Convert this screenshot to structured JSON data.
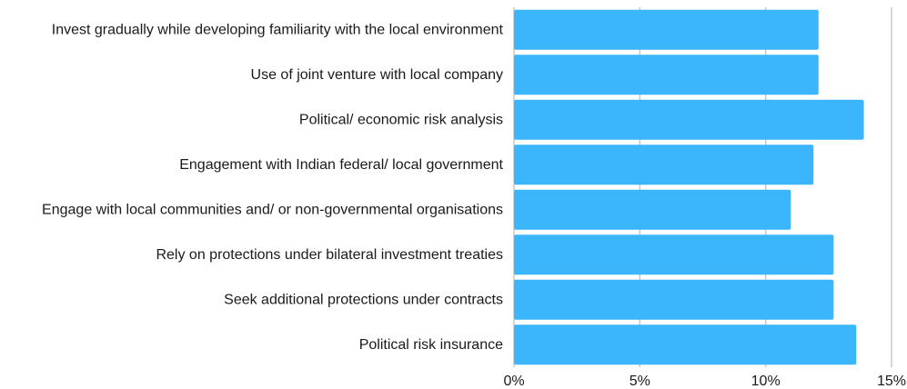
{
  "chart_data": {
    "type": "bar",
    "orientation": "horizontal",
    "categories": [
      "Invest gradually while developing familiarity with the local environment",
      "Use of joint venture with local company",
      "Political/ economic risk analysis",
      "Engagement with Indian federal/ local government",
      "Engage with local communities and/ or non-governmental organisations",
      "Rely on protections under bilateral investment treaties",
      "Seek additional protections under contracts",
      "Political risk insurance"
    ],
    "values": [
      12.1,
      12.1,
      13.9,
      11.9,
      11.0,
      12.7,
      12.7,
      13.6
    ],
    "value_unit": "%",
    "xlim": [
      0,
      15
    ],
    "xticks": [
      0,
      5,
      10,
      15
    ],
    "xtick_labels": [
      "0%",
      "5%",
      "10%",
      "15%"
    ],
    "title": "",
    "xlabel": "",
    "ylabel": "",
    "grid": true,
    "legend": "none",
    "bar_color": "#3bb6fd",
    "grid_color": "#c8c8c8"
  }
}
